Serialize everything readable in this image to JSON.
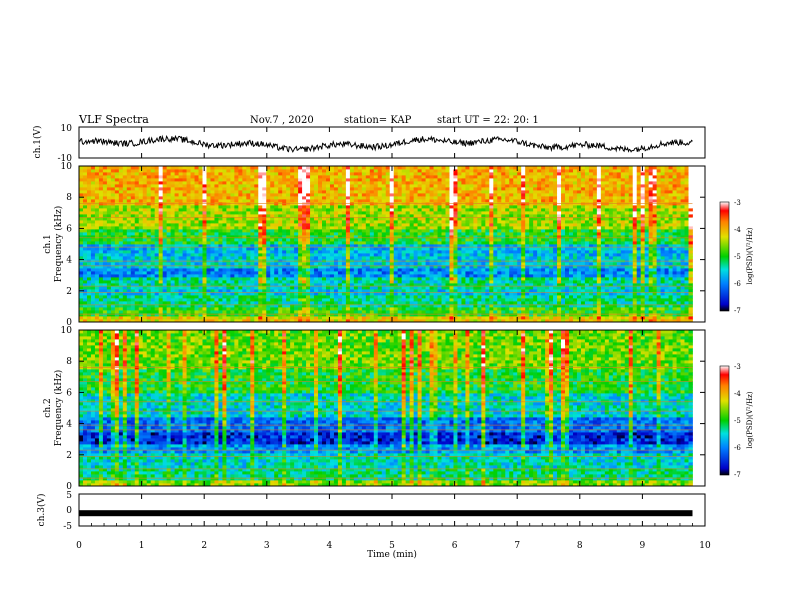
{
  "header": {
    "title": "VLF Spectra",
    "date": "Nov.7 , 2020",
    "station": "station= KAP",
    "start_ut": "start UT = 22: 20: 1"
  },
  "chart_data": {
    "type": "heatmap",
    "xlabel": "Time (min)",
    "xlim": [
      0,
      10
    ],
    "xticks": [
      "0",
      "1",
      "2",
      "3",
      "4",
      "5",
      "6",
      "7",
      "8",
      "9",
      "10"
    ],
    "panels": [
      {
        "name": "ch1-voltage",
        "type": "line",
        "ylabel": "ch.1(V)",
        "ylim": [
          -10,
          10
        ],
        "yticks": [
          "10",
          "-10"
        ],
        "description_values": "waveform between about -6 and 4 V over 0–9.8 min"
      },
      {
        "name": "ch1-spectrogram",
        "type": "heatmap",
        "ylabel": "ch.1\nFrequency (kHz)",
        "ylabel_lines": [
          "ch.1",
          "Frequency (kHz)"
        ],
        "ylim": [
          0,
          10
        ],
        "yticks": [
          "0",
          "2",
          "4",
          "6",
          "8",
          "10"
        ],
        "colorbar": {
          "label": "log(PSD)(V²/Hz)",
          "range": [
            -7,
            -3
          ],
          "ticks": [
            "-3",
            "-4",
            "-5",
            "-6",
            "-7"
          ]
        },
        "bands": [
          {
            "f0": 0.0,
            "f1": 0.4,
            "level": -4.2
          },
          {
            "f0": 0.4,
            "f1": 1.0,
            "level": -4.9
          },
          {
            "f0": 1.0,
            "f1": 1.7,
            "level": -5.3
          },
          {
            "f0": 1.7,
            "f1": 2.2,
            "level": -5.6
          },
          {
            "f0": 2.2,
            "f1": 2.8,
            "level": -5.4
          },
          {
            "f0": 2.8,
            "f1": 3.5,
            "level": -6.0
          },
          {
            "f0": 3.5,
            "f1": 4.2,
            "level": -5.6
          },
          {
            "f0": 4.2,
            "f1": 5.0,
            "level": -5.7
          },
          {
            "f0": 5.0,
            "f1": 6.0,
            "level": -5.0
          },
          {
            "f0": 6.0,
            "f1": 7.5,
            "level": -4.5
          },
          {
            "f0": 7.5,
            "f1": 10.0,
            "level": -4.0
          }
        ]
      },
      {
        "name": "ch2-spectrogram",
        "type": "heatmap",
        "ylabel": "ch.2\nFrequency (kHz)",
        "ylabel_lines": [
          "ch.2",
          "Frequency (kHz)"
        ],
        "ylim": [
          0,
          10
        ],
        "yticks": [
          "0",
          "2",
          "4",
          "6",
          "8",
          "10"
        ],
        "colorbar": {
          "label": "log(PSD)(V²/Hz)",
          "range": [
            -7,
            -3
          ],
          "ticks": [
            "-3",
            "-4",
            "-5",
            "-6",
            "-7"
          ]
        },
        "bands": [
          {
            "f0": 0.0,
            "f1": 0.4,
            "level": -4.6
          },
          {
            "f0": 0.4,
            "f1": 1.2,
            "level": -5.3
          },
          {
            "f0": 1.2,
            "f1": 2.2,
            "level": -5.5
          },
          {
            "f0": 2.2,
            "f1": 2.6,
            "level": -5.9
          },
          {
            "f0": 2.6,
            "f1": 3.4,
            "level": -6.5
          },
          {
            "f0": 3.4,
            "f1": 4.5,
            "level": -6.1
          },
          {
            "f0": 4.5,
            "f1": 6.0,
            "level": -5.5
          },
          {
            "f0": 6.0,
            "f1": 7.5,
            "level": -5.0
          },
          {
            "f0": 7.5,
            "f1": 10.0,
            "level": -4.7
          }
        ]
      },
      {
        "name": "ch3-voltage",
        "type": "line",
        "ylabel": "ch.3(V)",
        "ylim": [
          -5,
          5
        ],
        "yticks": [
          "5",
          "0",
          "-5"
        ],
        "constant_level": -1
      }
    ]
  }
}
